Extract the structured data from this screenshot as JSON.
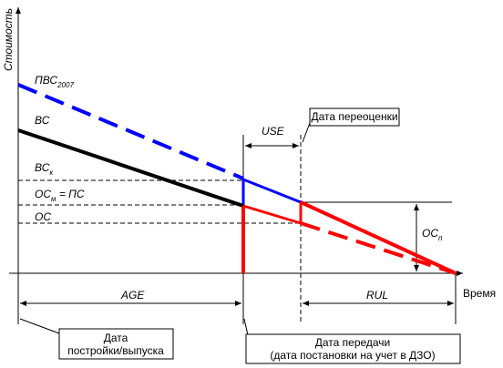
{
  "axes": {
    "y_label": "Стоимость",
    "x_label": "Время"
  },
  "labels": {
    "pvs": {
      "main": "ПВС",
      "sub": "2007"
    },
    "vs": "ВС",
    "vsk": {
      "main": "ВС",
      "sub": "к"
    },
    "osm": {
      "main": "ОС",
      "sub": "м",
      "tail": " = ПС"
    },
    "os": "ОС",
    "osp": {
      "main": "ОС",
      "sub": "п"
    },
    "use": "USE",
    "age": "AGE",
    "rul": "RUL"
  },
  "callouts": {
    "revaluation": "Дата переоценки",
    "built": [
      "Дата",
      "постройки/выпуска"
    ],
    "transfer": [
      "Дата передачи",
      "(дата постановки на учет в ДЗО)"
    ]
  }
}
